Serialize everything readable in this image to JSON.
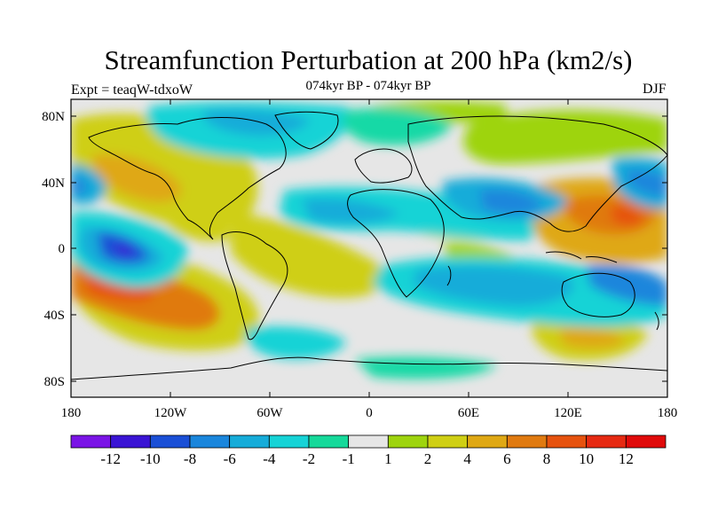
{
  "title": "Streamfunction Perturbation at 200 hPa (km2/s)",
  "subtitle_left": "Expt = teaqW-tdxoW",
  "subtitle_center": "074kyr BP - 074kyr BP",
  "subtitle_right": "DJF",
  "lat_labels": [
    "80N",
    "40N",
    "0",
    "40S",
    "80S"
  ],
  "lon_labels": [
    "180",
    "120W",
    "60W",
    "0",
    "60E",
    "120E",
    "180"
  ],
  "colorbar": {
    "labels": [
      "-12",
      "-10",
      "-8",
      "-6",
      "-4",
      "-2",
      "-1",
      "1",
      "2",
      "4",
      "6",
      "8",
      "10",
      "12"
    ],
    "colors": [
      "#7a14e6",
      "#3a14d4",
      "#1a4fd6",
      "#1a86dc",
      "#16acd9",
      "#16d3d6",
      "#16d99a",
      "#e6e6e6",
      "#9ed40e",
      "#cfcf14",
      "#dfa814",
      "#e07a10",
      "#e6520e",
      "#e62a12",
      "#e00a0a"
    ]
  },
  "colors": {
    "neutral": "#e6e6e6",
    "coast": "#000000"
  }
}
